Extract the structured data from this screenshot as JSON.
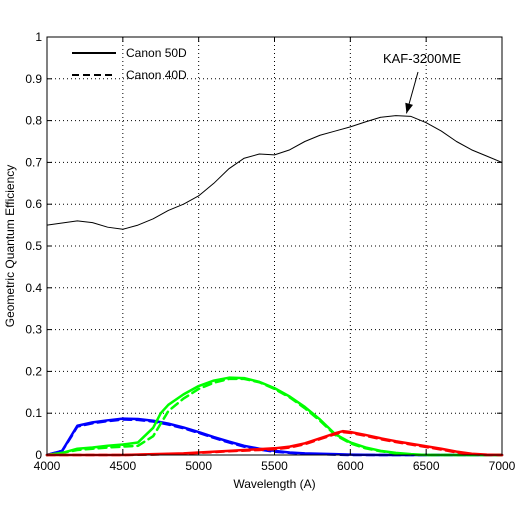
{
  "chart_data": {
    "type": "line",
    "title": "",
    "xlabel": "Wavelength (A)",
    "ylabel": "Geometric Quantum Efficiency",
    "xlim": [
      4000,
      7000
    ],
    "ylim": [
      0,
      1
    ],
    "xticks": [
      4000,
      4500,
      5000,
      5500,
      6000,
      6500,
      7000
    ],
    "xtick_labels": [
      "4000",
      "4500",
      "5000",
      "5500",
      "6000",
      "6500",
      "7000"
    ],
    "yticks": [
      0,
      0.1,
      0.2,
      0.3,
      0.4,
      0.5,
      0.6,
      0.7,
      0.8,
      0.9,
      1
    ],
    "ytick_labels": [
      "0",
      "0.1",
      "0.2",
      "0.3",
      "0.4",
      "0.5",
      "0.6",
      "0.7",
      "0.8",
      "0.9",
      "1"
    ],
    "grid": true,
    "legend": {
      "placement": "top-left",
      "entries": [
        {
          "label": "Canon 50D",
          "style": "solid"
        },
        {
          "label": "Canon 40D",
          "style": "dashed"
        }
      ]
    },
    "annotations": [
      {
        "text": "KAF-3200ME",
        "points_to": [
          6370,
          0.81
        ]
      }
    ],
    "series": [
      {
        "group": "kaf",
        "style": "solid",
        "color": "#000000",
        "width": 1,
        "x": [
          4000,
          4100,
          4200,
          4300,
          4400,
          4500,
          4600,
          4700,
          4800,
          4900,
          5000,
          5100,
          5200,
          5300,
          5400,
          5500,
          5600,
          5700,
          5800,
          5900,
          6000,
          6100,
          6200,
          6300,
          6400,
          6500,
          6600,
          6700,
          6800,
          6900,
          7000
        ],
        "y": [
          0.55,
          0.555,
          0.56,
          0.556,
          0.545,
          0.54,
          0.55,
          0.565,
          0.585,
          0.6,
          0.62,
          0.65,
          0.685,
          0.71,
          0.72,
          0.718,
          0.73,
          0.75,
          0.765,
          0.775,
          0.785,
          0.797,
          0.808,
          0.812,
          0.81,
          0.795,
          0.775,
          0.75,
          0.73,
          0.715,
          0.7
        ]
      },
      {
        "group": "50D",
        "channel": "blue",
        "style": "solid",
        "color": "#0000ff",
        "width": 2.5,
        "x": [
          4000,
          4100,
          4150,
          4200,
          4300,
          4400,
          4500,
          4600,
          4700,
          4800,
          4900,
          5000,
          5100,
          5200,
          5300,
          5400,
          5500,
          5600,
          5700,
          5800,
          5900,
          6000,
          6200,
          6500,
          7000
        ],
        "y": [
          0.0,
          0.01,
          0.04,
          0.07,
          0.078,
          0.083,
          0.087,
          0.086,
          0.082,
          0.075,
          0.066,
          0.055,
          0.043,
          0.032,
          0.022,
          0.015,
          0.01,
          0.006,
          0.004,
          0.003,
          0.002,
          0.001,
          0.0,
          0.0,
          0.0
        ]
      },
      {
        "group": "40D",
        "channel": "blue",
        "style": "dashed",
        "color": "#0000ff",
        "width": 2.5,
        "x": [
          4000,
          4100,
          4150,
          4200,
          4300,
          4400,
          4500,
          4600,
          4700,
          4800,
          4900,
          5000,
          5100,
          5200,
          5300,
          5400,
          5500,
          5600,
          5700,
          5800,
          5900,
          6000,
          6200,
          6500,
          7000
        ],
        "y": [
          0.0,
          0.01,
          0.038,
          0.068,
          0.076,
          0.081,
          0.085,
          0.084,
          0.08,
          0.073,
          0.064,
          0.053,
          0.041,
          0.03,
          0.02,
          0.013,
          0.008,
          0.005,
          0.003,
          0.002,
          0.001,
          0.0,
          0.0,
          0.0,
          0.0
        ]
      },
      {
        "group": "50D",
        "channel": "green",
        "style": "solid",
        "color": "#00ff00",
        "width": 2.5,
        "x": [
          4000,
          4100,
          4200,
          4300,
          4400,
          4500,
          4600,
          4700,
          4750,
          4800,
          4900,
          5000,
          5100,
          5200,
          5300,
          5400,
          5500,
          5600,
          5700,
          5800,
          5900,
          6000,
          6100,
          6200,
          6300,
          6400,
          6500,
          7000
        ],
        "y": [
          0.0,
          0.005,
          0.015,
          0.018,
          0.022,
          0.025,
          0.03,
          0.065,
          0.1,
          0.12,
          0.145,
          0.165,
          0.178,
          0.185,
          0.184,
          0.175,
          0.16,
          0.14,
          0.115,
          0.085,
          0.05,
          0.03,
          0.018,
          0.01,
          0.005,
          0.002,
          0.0,
          0.0
        ]
      },
      {
        "group": "40D",
        "channel": "green",
        "style": "dashed",
        "color": "#00ff00",
        "width": 2.5,
        "x": [
          4000,
          4100,
          4200,
          4300,
          4400,
          4500,
          4600,
          4700,
          4750,
          4800,
          4900,
          5000,
          5100,
          5200,
          5300,
          5400,
          5500,
          5600,
          5700,
          5800,
          5900,
          6000,
          6100,
          6200,
          6300,
          6400,
          6500,
          7000
        ],
        "y": [
          0.0,
          0.005,
          0.012,
          0.015,
          0.018,
          0.02,
          0.022,
          0.045,
          0.075,
          0.105,
          0.135,
          0.158,
          0.173,
          0.182,
          0.182,
          0.174,
          0.158,
          0.138,
          0.112,
          0.082,
          0.048,
          0.028,
          0.016,
          0.009,
          0.004,
          0.001,
          0.0,
          0.0
        ]
      },
      {
        "group": "50D",
        "channel": "red",
        "style": "solid",
        "color": "#ff0000",
        "width": 2.5,
        "x": [
          4000,
          4500,
          4700,
          4900,
          5000,
          5200,
          5400,
          5500,
          5600,
          5700,
          5800,
          5900,
          5950,
          6000,
          6100,
          6200,
          6300,
          6400,
          6500,
          6600,
          6700,
          6800,
          6900,
          7000
        ],
        "y": [
          0.0,
          0.0,
          0.002,
          0.004,
          0.006,
          0.01,
          0.014,
          0.016,
          0.02,
          0.028,
          0.04,
          0.052,
          0.057,
          0.055,
          0.048,
          0.04,
          0.033,
          0.027,
          0.021,
          0.015,
          0.008,
          0.003,
          0.001,
          0.0
        ]
      },
      {
        "group": "40D",
        "channel": "red",
        "style": "dashed",
        "color": "#ff0000",
        "width": 2.5,
        "x": [
          4000,
          4500,
          4700,
          4900,
          5000,
          5200,
          5400,
          5500,
          5600,
          5700,
          5800,
          5900,
          5950,
          6000,
          6100,
          6200,
          6300,
          6400,
          6500,
          6600,
          6700,
          6800,
          6900,
          7000
        ],
        "y": [
          0.0,
          0.0,
          0.001,
          0.003,
          0.005,
          0.009,
          0.012,
          0.014,
          0.018,
          0.026,
          0.038,
          0.05,
          0.055,
          0.053,
          0.046,
          0.038,
          0.031,
          0.025,
          0.019,
          0.013,
          0.006,
          0.002,
          0.0,
          0.0
        ]
      }
    ]
  }
}
